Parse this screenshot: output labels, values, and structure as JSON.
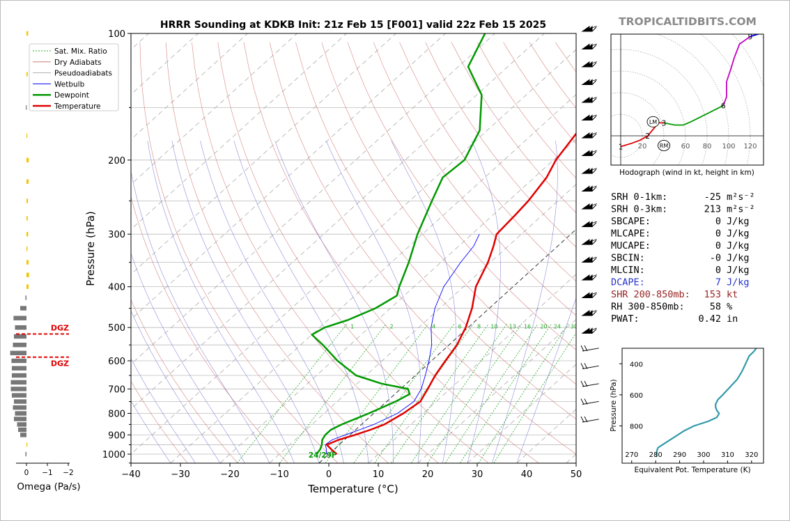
{
  "watermark": "TROPICALTIDBITS.COM",
  "chart_data": [
    {
      "type": "line",
      "title": "HRRR Sounding at KDKB Init: 21z Feb 15 [F001] valid 22z Feb 15 2025",
      "xlabel": "Temperature (°C)",
      "ylabel": "Pressure (hPa)",
      "xlim": [
        -40,
        50
      ],
      "ylim": [
        1050,
        100
      ],
      "x_ticks": [
        "−40",
        "−30",
        "−20",
        "−10",
        "0",
        "10",
        "20",
        "30",
        "40",
        "50"
      ],
      "y_ticks": [
        "100",
        "200",
        "300",
        "400",
        "500",
        "600",
        "700",
        "800",
        "900",
        "1000"
      ],
      "legend_position": "top-left",
      "legend": [
        "Sat. Mix. Ratio",
        "Dry Adiabats",
        "Pseudoadiabats",
        "Wetbulb",
        "Dewpoint",
        "Temperature"
      ],
      "mixing_ratio_labels": [
        "1",
        "2",
        "4",
        "6",
        "8",
        "10",
        "13",
        "16",
        "20",
        "24",
        "30",
        "36"
      ],
      "surface_label": "24/29F",
      "colors": {
        "temperature": "#e00000",
        "dewpoint": "#009900",
        "wetbulb": "#0000ff",
        "dry": "#cc6666",
        "moist": "#6666cc",
        "mix": "#22aa22"
      },
      "series": [
        {
          "name": "Temperature",
          "points": [
            [
              1.6,
              1000
            ],
            [
              -0.5,
              975
            ],
            [
              -2.5,
              950
            ],
            [
              -1.2,
              925
            ],
            [
              1.0,
              900
            ],
            [
              3.0,
              875
            ],
            [
              4.6,
              850
            ],
            [
              6.0,
              800
            ],
            [
              6.8,
              750
            ],
            [
              5.5,
              700
            ],
            [
              4.0,
              650
            ],
            [
              2.8,
              600
            ],
            [
              1.6,
              550
            ],
            [
              -0.5,
              500
            ],
            [
              -3.5,
              450
            ],
            [
              -7.5,
              400
            ],
            [
              -10.5,
              350
            ],
            [
              -13.0,
              320
            ],
            [
              -15.0,
              300
            ],
            [
              -15.5,
              270
            ],
            [
              -16.0,
              250
            ],
            [
              -17.5,
              220
            ],
            [
              -19.5,
              200
            ],
            [
              -21.5,
              170
            ],
            [
              -21.0,
              150
            ],
            [
              -24.0,
              130
            ],
            [
              -30.0,
              110
            ],
            [
              -36.0,
              100
            ]
          ]
        },
        {
          "name": "Dewpoint",
          "points": [
            [
              -2.5,
              1000
            ],
            [
              -2.8,
              975
            ],
            [
              -3.5,
              950
            ],
            [
              -4.5,
              925
            ],
            [
              -5.0,
              900
            ],
            [
              -5.0,
              875
            ],
            [
              -4.0,
              850
            ],
            [
              -1.0,
              800
            ],
            [
              1.8,
              750
            ],
            [
              3.0,
              720
            ],
            [
              1.5,
              700
            ],
            [
              -5.0,
              680
            ],
            [
              -12.0,
              650
            ],
            [
              -19.0,
              600
            ],
            [
              -25.5,
              550
            ],
            [
              -30.0,
              520
            ],
            [
              -29.0,
              500
            ],
            [
              -26.0,
              480
            ],
            [
              -23.0,
              450
            ],
            [
              -21.5,
              420
            ],
            [
              -23.0,
              400
            ],
            [
              -26.5,
              350
            ],
            [
              -31.0,
              300
            ],
            [
              -35.5,
              250
            ],
            [
              -38.5,
              220
            ],
            [
              -38.0,
              200
            ],
            [
              -41.5,
              170
            ],
            [
              -49.0,
              140
            ],
            [
              -58.0,
              120
            ],
            [
              -62.0,
              100
            ]
          ]
        },
        {
          "name": "Wetbulb",
          "points": [
            [
              -0.5,
              1000
            ],
            [
              -1.5,
              975
            ],
            [
              -2.8,
              950
            ],
            [
              -2.5,
              925
            ],
            [
              -1.0,
              900
            ],
            [
              0.8,
              875
            ],
            [
              2.5,
              850
            ],
            [
              4.8,
              800
            ],
            [
              5.5,
              750
            ],
            [
              4.2,
              700
            ],
            [
              2.0,
              650
            ],
            [
              -0.5,
              600
            ],
            [
              -3.5,
              550
            ],
            [
              -7.5,
              500
            ],
            [
              -11.0,
              450
            ],
            [
              -14.0,
              400
            ],
            [
              -16.0,
              350
            ],
            [
              -17.0,
              320
            ],
            [
              -18.5,
              300
            ]
          ]
        }
      ]
    },
    {
      "type": "bar",
      "xlabel": "Omega (Pa/s)",
      "x_ticks": [
        "0",
        "−1",
        "−2"
      ],
      "dgz_label": "DGZ",
      "colors": {
        "up": "#f2c500",
        "down": "#777777",
        "dgz": "#e00000"
      },
      "dgz_levels": [
        518,
        588
      ],
      "levels": [
        1000,
        975,
        950,
        925,
        900,
        875,
        850,
        825,
        800,
        775,
        750,
        725,
        700,
        675,
        650,
        625,
        600,
        575,
        550,
        525,
        500,
        475,
        450,
        425,
        400,
        375,
        350,
        325,
        300,
        275,
        250,
        225,
        200,
        175,
        150,
        125,
        100
      ],
      "values": [
        -0.05,
        0,
        0.02,
        0,
        -0.3,
        -0.4,
        -0.45,
        -0.6,
        -0.55,
        -0.65,
        -0.6,
        -0.7,
        -0.75,
        -0.75,
        -0.7,
        -0.7,
        -0.72,
        -0.78,
        -0.65,
        -0.6,
        -0.55,
        -0.62,
        -0.3,
        -0.05,
        0.1,
        0.12,
        0.1,
        0.05,
        0.08,
        0.06,
        0.07,
        0.1,
        0.11,
        0.03,
        -0.03,
        0.06,
        0.08
      ]
    },
    {
      "type": "line",
      "title": "Hodograph (wind in kt, height in km)",
      "x_ticks": [
        "20",
        "40",
        "60",
        "80",
        "100",
        "120"
      ],
      "marker_labels": [
        "1",
        "2",
        "3",
        "6",
        "9"
      ],
      "storm_motion_labels": [
        "LM",
        "RM"
      ],
      "colors": {
        "0-3km": "#e00000",
        "3-6km": "#009900",
        "6-9km": "#c000c0",
        "9-12km": "#0000ff"
      },
      "series": [
        {
          "name": "0-3 km",
          "points": [
            [
              0,
              -10
            ],
            [
              10,
              -7
            ],
            [
              18,
              -4
            ],
            [
              25,
              0
            ],
            [
              30,
              6
            ],
            [
              35,
              12
            ],
            [
              40,
              12
            ]
          ]
        },
        {
          "name": "3-6 km",
          "points": [
            [
              40,
              12
            ],
            [
              50,
              10
            ],
            [
              58,
              10
            ],
            [
              65,
              13
            ],
            [
              75,
              18
            ],
            [
              85,
              23
            ],
            [
              95,
              28
            ]
          ]
        },
        {
          "name": "6-9 km",
          "points": [
            [
              95,
              28
            ],
            [
              98,
              36
            ],
            [
              98,
              50
            ],
            [
              102,
              62
            ],
            [
              105,
              72
            ],
            [
              110,
              85
            ],
            [
              120,
              92
            ]
          ]
        },
        {
          "name": "9-12 km",
          "points": [
            [
              120,
              92
            ],
            [
              130,
              95
            ],
            [
              140,
              94
            ],
            [
              142,
              90
            ],
            [
              142,
              80
            ]
          ]
        }
      ],
      "storm_motion": [
        [
          30,
          13
        ],
        [
          40,
          -9
        ]
      ]
    },
    {
      "type": "line",
      "xlabel": "Equivalent Pot. Temperature (K)",
      "ylabel": "Pressure (hPa)",
      "x_ticks": [
        "270",
        "280",
        "290",
        "300",
        "310",
        "320"
      ],
      "y_ticks": [
        "400",
        "600",
        "800"
      ],
      "xlim": [
        266,
        325
      ],
      "ylim": [
        1040,
        300
      ],
      "color": "#3399aa",
      "points": [
        [
          280.3,
          1000
        ],
        [
          280.5,
          960
        ],
        [
          281,
          940
        ],
        [
          283,
          920
        ],
        [
          286,
          890
        ],
        [
          289,
          860
        ],
        [
          292,
          830
        ],
        [
          296,
          800
        ],
        [
          302,
          770
        ],
        [
          305.5,
          745
        ],
        [
          306.5,
          720
        ],
        [
          305.5,
          700
        ],
        [
          305,
          680
        ],
        [
          305,
          660
        ],
        [
          306,
          630
        ],
        [
          308,
          600
        ],
        [
          311,
          550
        ],
        [
          314,
          500
        ],
        [
          316,
          450
        ],
        [
          317.5,
          400
        ],
        [
          319,
          350
        ],
        [
          321,
          320
        ],
        [
          322,
          300
        ]
      ]
    }
  ],
  "stats": [
    {
      "label": "SRH 0-1km:",
      "value": "-25",
      "unit": "m²s⁻²",
      "color": "#000000"
    },
    {
      "label": "SRH 0-3km:",
      "value": "213",
      "unit": "m²s⁻²",
      "color": "#000000"
    },
    {
      "label": "SBCAPE:",
      "value": "0",
      "unit": "J/kg",
      "color": "#000000"
    },
    {
      "label": "MLCAPE:",
      "value": "0",
      "unit": "J/kg",
      "color": "#000000"
    },
    {
      "label": "MUCAPE:",
      "value": "0",
      "unit": "J/kg",
      "color": "#000000"
    },
    {
      "label": "SBCIN:",
      "value": "-0",
      "unit": "J/kg",
      "color": "#000000"
    },
    {
      "label": "MLCIN:",
      "value": "0",
      "unit": "J/kg",
      "color": "#000000"
    },
    {
      "label": "DCAPE:",
      "value": "7",
      "unit": "J/kg",
      "color": "#2233cc"
    },
    {
      "label": "SHR 200-850mb:",
      "value": "153",
      "unit": "kt",
      "color": "#992222"
    },
    {
      "label": "RH 300-850mb:",
      "value": "58",
      "unit": "%",
      "color": "#000000"
    },
    {
      "label": "PWAT:",
      "value": "0.42",
      "unit": "in",
      "color": "#000000"
    }
  ]
}
